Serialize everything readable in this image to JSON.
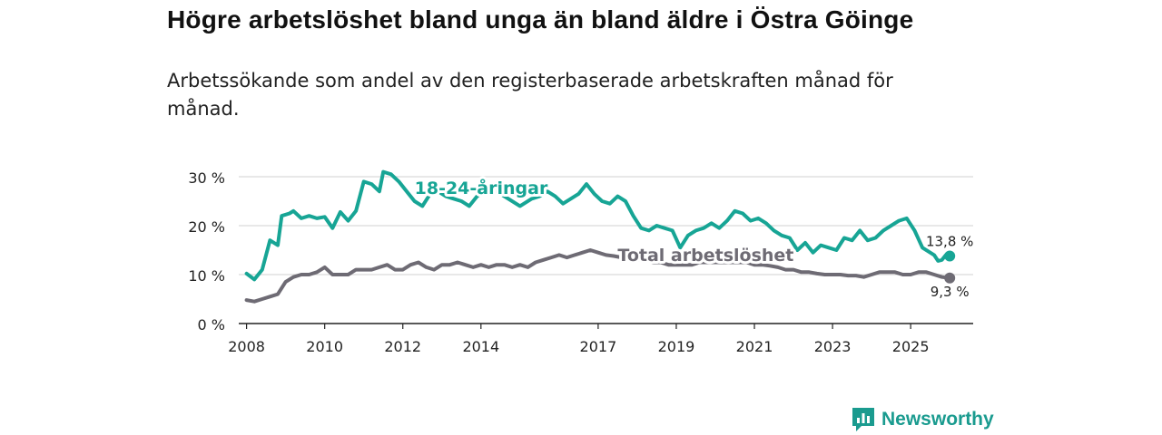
{
  "title": "Högre arbetslöshet bland unga än bland äldre i Östra Göinge",
  "subtitle": "Arbetssökande som andel av den registerbaserade arbetskraften månad för månad.",
  "brand": {
    "name": "Newsworthy",
    "color": "#1a9b8f",
    "icon": "bar-chart-logo-icon"
  },
  "chart_data": {
    "type": "line",
    "title": "Högre arbetslöshet bland unga än bland äldre i Östra Göinge",
    "xlabel": "",
    "ylabel": "",
    "xlim": [
      2007.8,
      2026.6
    ],
    "ylim": [
      0,
      30
    ],
    "grid": true,
    "yticks": [
      0,
      10,
      20,
      30
    ],
    "ytick_labels": [
      "0 %",
      "10 %",
      "20 %",
      "30 %"
    ],
    "xticks": [
      2008,
      2010,
      2012,
      2014,
      2017,
      2019,
      2021,
      2023,
      2025
    ],
    "xtick_labels": [
      "2008",
      "2010",
      "2012",
      "2014",
      "2017",
      "2019",
      "2021",
      "2023",
      "2025"
    ],
    "series": [
      {
        "name": "18-24-åringar",
        "color": "#17a595",
        "label_at": [
          2009.3,
          27.5
        ],
        "end_label": "13,8 %",
        "x": [
          2008.0,
          2008.2,
          2008.4,
          2008.6,
          2008.8,
          2008.9,
          2009.1,
          2009.2,
          2009.4,
          2009.6,
          2009.8,
          2010.0,
          2010.2,
          2010.4,
          2010.6,
          2010.8,
          2011.0,
          2011.2,
          2011.4,
          2011.5,
          2011.7,
          2011.9,
          2012.1,
          2012.3,
          2012.5,
          2012.7,
          2012.9,
          2013.1,
          2013.3,
          2013.5,
          2013.7,
          2013.9,
          2014.1,
          2014.3,
          2015.0,
          2015.3,
          2015.5,
          2015.7,
          2015.9,
          2016.1,
          2016.3,
          2016.5,
          2016.7,
          2016.9,
          2017.1,
          2017.3,
          2017.5,
          2017.7,
          2017.9,
          2018.1,
          2018.3,
          2018.5,
          2018.7,
          2018.9,
          2019.1,
          2019.3,
          2019.5,
          2019.7,
          2019.9,
          2020.1,
          2020.3,
          2020.5,
          2020.7,
          2020.9,
          2021.1,
          2021.3,
          2021.5,
          2021.7,
          2021.9,
          2022.1,
          2022.3,
          2022.5,
          2022.7,
          2022.9,
          2023.1,
          2023.3,
          2023.5,
          2023.7,
          2023.9,
          2024.1,
          2024.3,
          2024.5,
          2024.7,
          2024.9,
          2025.1,
          2025.3,
          2025.6,
          2025.7,
          2025.8,
          2025.9,
          2026.0
        ],
        "y": [
          10.2,
          9.0,
          11.0,
          17.0,
          16.0,
          22.0,
          22.5,
          23.0,
          21.5,
          22.0,
          21.5,
          21.8,
          19.5,
          22.8,
          21.0,
          23.0,
          29.0,
          28.5,
          27.0,
          31.0,
          30.5,
          29.0,
          27.0,
          25.0,
          24.0,
          26.5,
          27.0,
          26.0,
          25.5,
          25.0,
          24.0,
          26.0,
          27.0,
          27.5,
          24.0,
          25.5,
          26.0,
          27.0,
          26.0,
          24.5,
          25.5,
          26.5,
          28.5,
          26.5,
          25.0,
          24.5,
          26.0,
          25.0,
          22.0,
          19.5,
          19.0,
          20.0,
          19.5,
          19.0,
          15.5,
          18.0,
          19.0,
          19.5,
          20.5,
          19.5,
          21.0,
          23.0,
          22.5,
          21.0,
          21.5,
          20.5,
          19.0,
          18.0,
          17.5,
          15.0,
          16.5,
          14.5,
          16.0,
          15.5,
          15.0,
          17.5,
          17.0,
          19.0,
          17.0,
          17.5,
          19.0,
          20.0,
          21.0,
          21.5,
          19.0,
          15.5,
          14.0,
          12.8,
          13.0,
          14.0,
          13.8
        ]
      },
      {
        "name": "Total arbetslöshet",
        "color": "#6e6b74",
        "label_at": [
          2017.5,
          13.2
        ],
        "end_label": "9,3 %",
        "x": [
          2008.0,
          2008.2,
          2008.4,
          2008.6,
          2008.8,
          2009.0,
          2009.2,
          2009.4,
          2009.6,
          2009.8,
          2010.0,
          2010.2,
          2010.4,
          2010.6,
          2010.8,
          2011.0,
          2011.2,
          2011.4,
          2011.6,
          2011.8,
          2012.0,
          2012.2,
          2012.4,
          2012.6,
          2012.8,
          2013.0,
          2013.2,
          2013.4,
          2013.6,
          2013.8,
          2014.0,
          2014.2,
          2014.4,
          2014.6,
          2014.8,
          2015.0,
          2015.2,
          2015.4,
          2015.6,
          2015.8,
          2016.0,
          2016.2,
          2016.4,
          2016.6,
          2016.8,
          2017.0,
          2017.2,
          2017.4,
          2017.6,
          2017.8,
          2018.0,
          2018.2,
          2018.4,
          2018.6,
          2018.8,
          2019.0,
          2019.2,
          2019.4,
          2019.6,
          2019.8,
          2020.0,
          2020.2,
          2020.4,
          2020.6,
          2020.8,
          2021.0,
          2021.2,
          2021.4,
          2021.6,
          2021.8,
          2022.0,
          2022.2,
          2022.4,
          2022.6,
          2022.8,
          2023.0,
          2023.2,
          2023.4,
          2023.6,
          2023.8,
          2024.0,
          2024.2,
          2024.4,
          2024.6,
          2024.8,
          2025.0,
          2025.2,
          2025.4,
          2025.6,
          2025.8,
          2026.0
        ],
        "y": [
          4.8,
          4.5,
          5.0,
          5.5,
          6.0,
          8.5,
          9.5,
          10.0,
          10.0,
          10.5,
          11.5,
          10.0,
          10.0,
          10.0,
          11.0,
          11.0,
          11.0,
          11.5,
          12.0,
          11.0,
          11.0,
          12.0,
          12.5,
          11.5,
          11.0,
          12.0,
          12.0,
          12.5,
          12.0,
          11.5,
          12.0,
          11.5,
          12.0,
          12.0,
          11.5,
          12.0,
          11.5,
          12.5,
          13.0,
          13.5,
          14.0,
          13.5,
          14.0,
          14.5,
          15.0,
          14.5,
          14.0,
          13.8,
          13.5,
          13.5,
          13.0,
          13.0,
          12.5,
          12.5,
          12.0,
          12.0,
          12.0,
          12.0,
          12.5,
          12.5,
          12.5,
          12.5,
          12.5,
          12.5,
          12.5,
          12.0,
          12.0,
          11.8,
          11.5,
          11.0,
          11.0,
          10.5,
          10.5,
          10.2,
          10.0,
          10.0,
          10.0,
          9.8,
          9.8,
          9.5,
          10.0,
          10.5,
          10.5,
          10.5,
          10.0,
          10.0,
          10.5,
          10.5,
          10.0,
          9.5,
          9.3
        ]
      }
    ]
  }
}
